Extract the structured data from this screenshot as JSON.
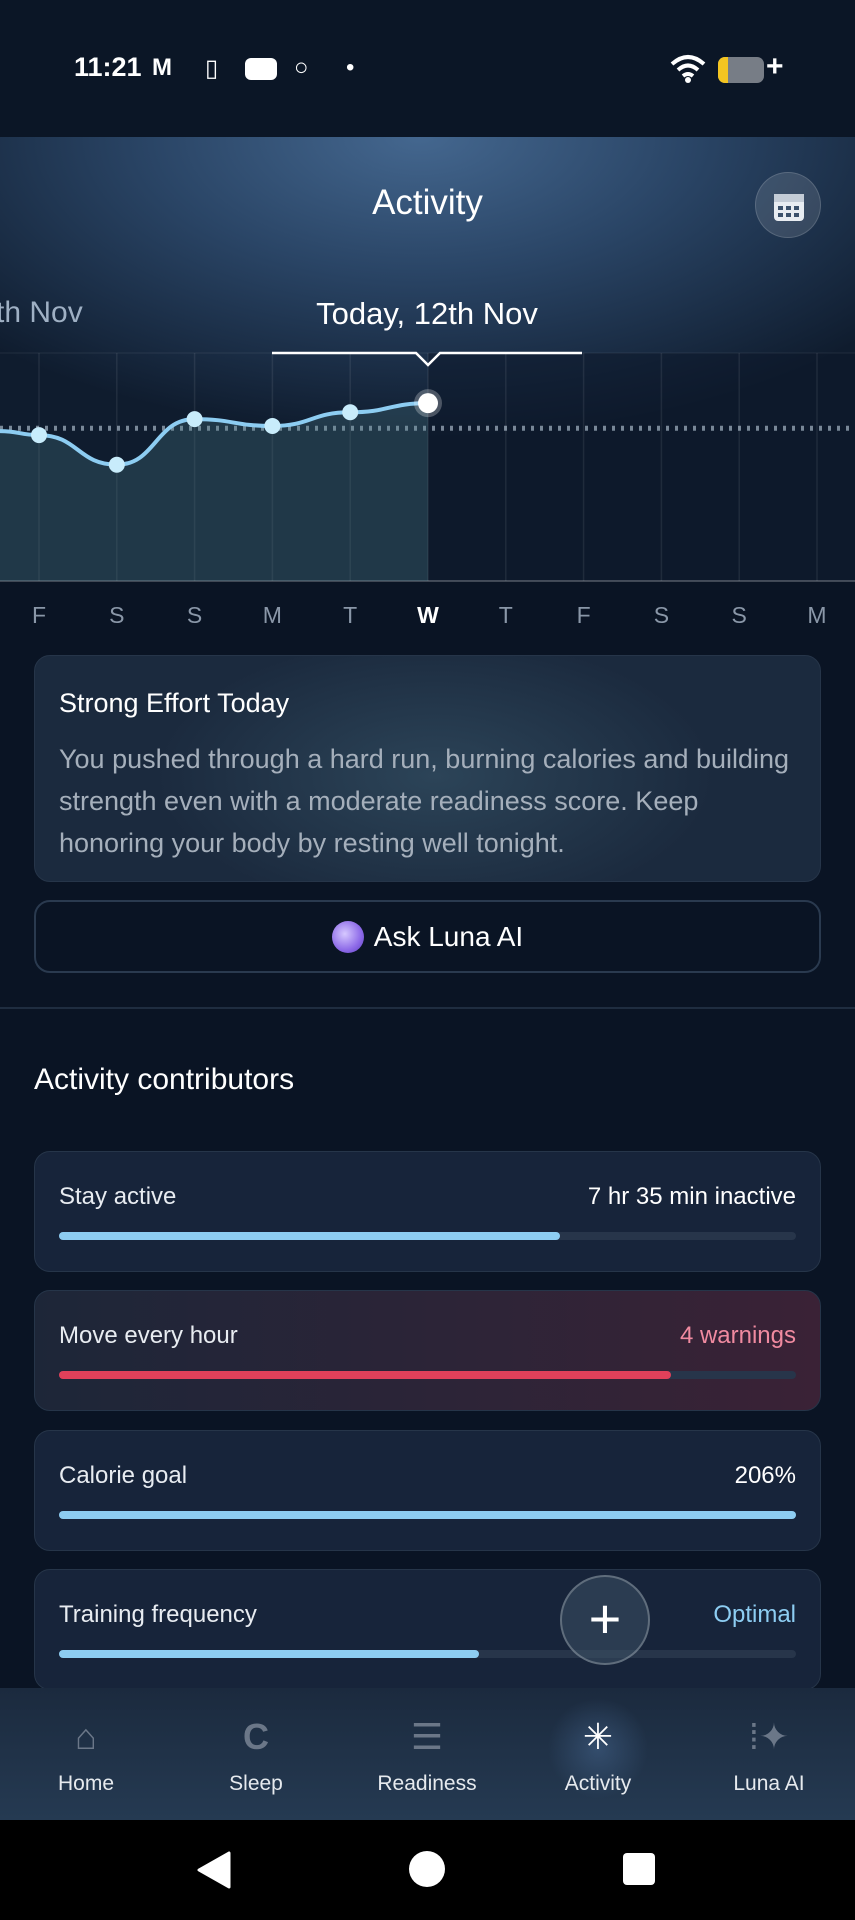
{
  "status_bar": {
    "time": "11:21",
    "icons": [
      "gmail-icon",
      "battery-saver-icon",
      "youtube-icon",
      "oura-icon",
      "dot-icon",
      "wifi-icon",
      "battery-icon"
    ]
  },
  "header": {
    "title": "Activity",
    "calendar_icon": "calendar-icon",
    "prev_date": "th Nov",
    "selected_date": "Today, 12th Nov"
  },
  "chart_data": {
    "type": "line",
    "categories": [
      "F",
      "S",
      "S",
      "M",
      "T",
      "W",
      "T",
      "F",
      "S",
      "S",
      "M"
    ],
    "values": [
      64,
      51,
      71,
      68,
      74,
      78,
      null,
      null,
      null,
      null,
      null
    ],
    "baseline": 67,
    "ylim": [
      0,
      100
    ],
    "selected_index": 5,
    "line_color": "#8dcdf2",
    "grid": true
  },
  "insight": {
    "title": "Strong Effort Today",
    "body": "You pushed through a hard run, burning calories and building strength even with a moderate readiness score. Keep honoring your body by resting well tonight."
  },
  "ask_button": {
    "label": "Ask Luna AI"
  },
  "contributors": {
    "title": "Activity contributors",
    "items": [
      {
        "label": "Stay active",
        "value": "7 hr 35 min inactive",
        "progress": 0.68,
        "color": "#8dcdf2",
        "value_color": "#ffffff"
      },
      {
        "label": "Move every hour",
        "value": "4 warnings",
        "progress": 0.83,
        "color": "#e0405a",
        "value_color": "#f08aa0"
      },
      {
        "label": "Calorie goal",
        "value": "206%",
        "progress": 1.0,
        "color": "#8dcdf2",
        "value_color": "#ffffff"
      },
      {
        "label": "Training frequency",
        "value": "Optimal",
        "progress": 0.57,
        "color": "#8dcdf2",
        "value_color": "#8dcdf2"
      }
    ]
  },
  "fab": {
    "icon": "plus-icon"
  },
  "nav": {
    "items": [
      {
        "label": "Home",
        "icon": "home-icon",
        "active": false
      },
      {
        "label": "Sleep",
        "icon": "moon-icon",
        "active": false
      },
      {
        "label": "Readiness",
        "icon": "sunrise-icon",
        "active": false
      },
      {
        "label": "Activity",
        "icon": "asterisk-icon",
        "active": true
      },
      {
        "label": "Luna AI",
        "icon": "sparkle-icon",
        "active": false
      }
    ]
  }
}
